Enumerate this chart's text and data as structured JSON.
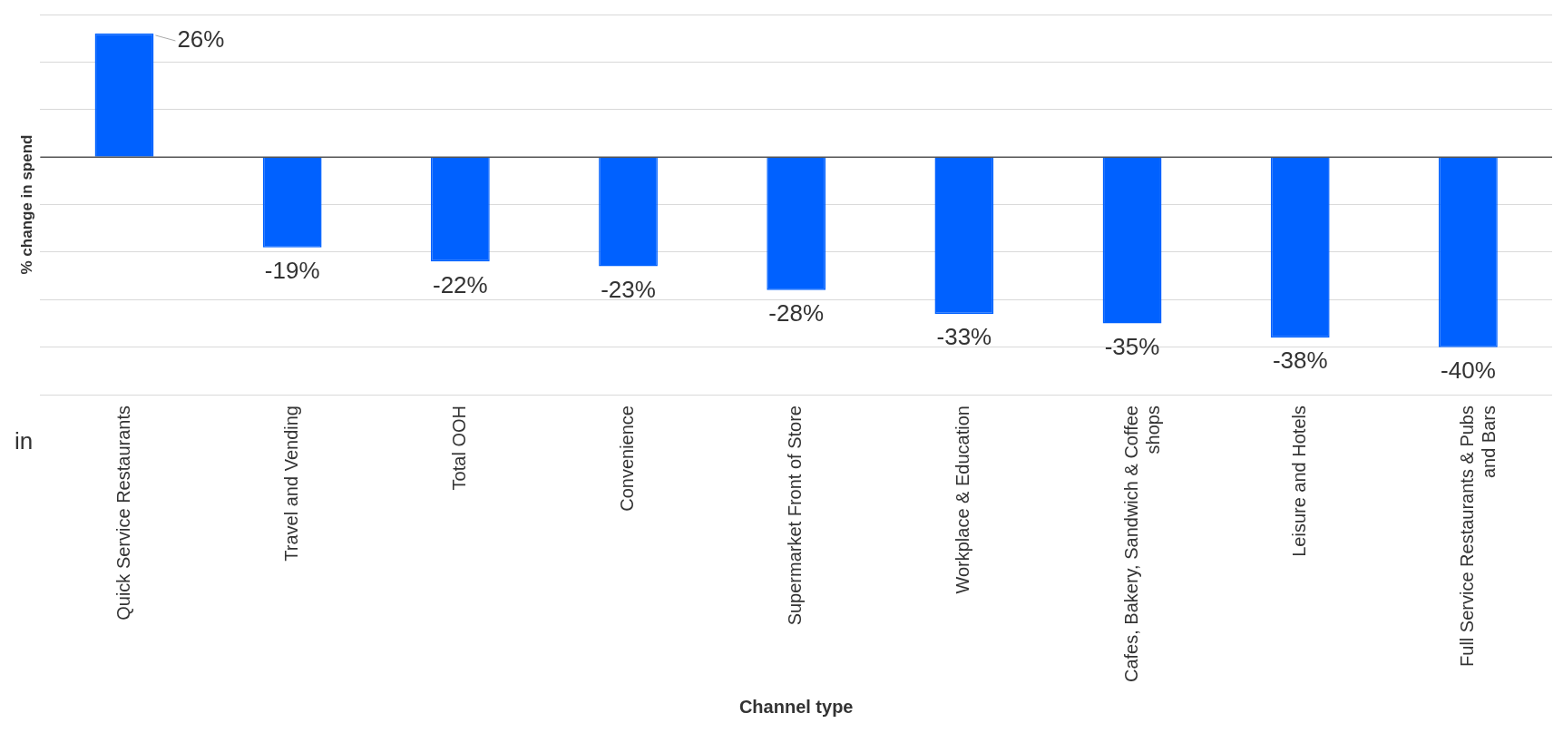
{
  "chart_data": {
    "type": "bar",
    "xlabel": "Channel type",
    "ylabel": "% change in spend",
    "categories": [
      "Quick Service Restaurants",
      "Travel and Vending",
      "Total OOH",
      "Convenience",
      "Supermarket Front of Store",
      "Workplace & Education",
      "Cafes, Bakery, Sandwich & Coffee shops",
      "Leisure and Hotels",
      "Full Service Restaurants & Pubs and Bars"
    ],
    "values": [
      26,
      -19,
      -22,
      -23,
      -28,
      -33,
      -35,
      -38,
      -40
    ],
    "color": "#0061ff",
    "value_labels": [
      "26%",
      "-19%",
      "-22%",
      "-23%",
      "-28%",
      "-33%",
      "-35%",
      "-38%",
      "-40%"
    ],
    "ylim": [
      -50,
      30
    ],
    "grid": "y",
    "tick_labels": "x",
    "legend": false,
    "annotations": [
      "in"
    ]
  }
}
